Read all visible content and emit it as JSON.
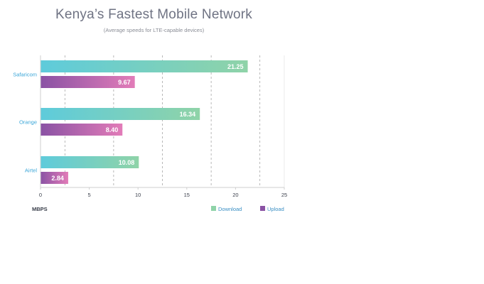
{
  "chart_data": {
    "type": "bar",
    "orientation": "horizontal",
    "title": "Kenya’s Fastest Mobile Network",
    "subtitle": "(Average speeds for LTE-capable devices)",
    "categories": [
      "Safaricom",
      "Orange",
      "Airtel"
    ],
    "series": [
      {
        "name": "Download",
        "values": [
          21.25,
          16.34,
          10.08
        ],
        "labels": [
          "21.25",
          "16.34",
          "10.08"
        ],
        "color_start": "#5ecbdb",
        "color_end": "#8fd3a8"
      },
      {
        "name": "Upload",
        "values": [
          9.67,
          8.4,
          2.84
        ],
        "labels": [
          "9.67",
          "8.40",
          "2.84"
        ],
        "color_start": "#8a52a4",
        "color_end": "#e27cb8"
      }
    ],
    "xlim": [
      0,
      25
    ],
    "xticks": [
      "0",
      "5",
      "10",
      "15",
      "20",
      "25"
    ],
    "xlabel": "MBPS",
    "ylabel": "",
    "grid": "vertical dashed",
    "legend_position": "bottom-right"
  },
  "colors": {
    "category_label": "#3aa6d8",
    "axis_label": "#3a3f4b",
    "legend_text": "#3a8fc4",
    "grid": "#9a9a9a"
  }
}
